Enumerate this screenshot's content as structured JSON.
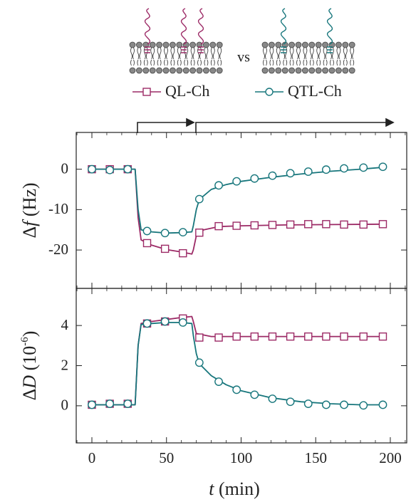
{
  "chart_data": [
    {
      "type": "line",
      "annotation": "vs",
      "xlim": [
        -10.5,
        211
      ],
      "xticks": [
        0,
        50,
        100,
        150,
        200
      ],
      "xticks_minor": [
        -10,
        10,
        20,
        30,
        40,
        60,
        70,
        80,
        90,
        110,
        120,
        130,
        140,
        160,
        170,
        180,
        190,
        210
      ],
      "xtick_labels": false,
      "ylim": [
        -29.5,
        9.1
      ],
      "yticks": [
        0,
        -10,
        -20
      ],
      "ylabel": [
        "Δ",
        "f",
        " (Hz)"
      ],
      "series": [
        {
          "name": "QL-Ch",
          "color": "#9c2a66",
          "marker": "square",
          "x": [
            0,
            29,
            31,
            33,
            40,
            50,
            60,
            67,
            68,
            70,
            75,
            85,
            100,
            130,
            160,
            196
          ],
          "values": [
            0,
            0,
            -12,
            -17.5,
            -18.8,
            -19.9,
            -20.5,
            -21,
            -20,
            -16.5,
            -15,
            -14.2,
            -14,
            -13.8,
            -13.7,
            -13.6
          ],
          "marker_x": [
            0,
            12,
            24,
            37,
            49,
            61,
            72,
            85,
            97,
            109,
            121,
            133,
            145,
            157,
            169,
            182,
            195
          ],
          "marker_values": [
            0,
            0,
            0,
            -18.3,
            -19.7,
            -20.8,
            -15.7,
            -14.1,
            -14,
            -13.9,
            -13.8,
            -13.7,
            -13.6,
            -13.6,
            -13.7,
            -13.7,
            -13.6
          ]
        },
        {
          "name": "QTL-Ch",
          "color": "#17767c",
          "marker": "circle",
          "x": [
            0,
            29,
            31,
            33,
            40,
            50,
            60,
            67,
            68,
            70,
            72,
            80,
            90,
            100,
            120,
            140,
            160,
            180,
            196
          ],
          "values": [
            0,
            0,
            -10,
            -15,
            -15.5,
            -15.8,
            -15.7,
            -15.5,
            -14,
            -10,
            -7.5,
            -5,
            -3.8,
            -3,
            -2,
            -1.2,
            -0.5,
            0,
            0.5
          ],
          "marker_x": [
            0,
            12,
            24,
            37,
            49,
            61,
            72,
            85,
            97,
            109,
            121,
            133,
            145,
            157,
            169,
            182,
            195
          ],
          "marker_values": [
            0,
            -0.2,
            0,
            -15.3,
            -15.8,
            -15.6,
            -7.4,
            -4,
            -3,
            -2.3,
            -1.6,
            -1,
            -0.6,
            -0.1,
            0.2,
            0.4,
            0.6
          ]
        }
      ]
    },
    {
      "type": "line",
      "xlim": [
        -10.5,
        211
      ],
      "xticks": [
        0,
        50,
        100,
        150,
        200
      ],
      "xticks_minor": [
        -10,
        10,
        20,
        30,
        40,
        60,
        70,
        80,
        90,
        110,
        120,
        130,
        140,
        160,
        170,
        180,
        190,
        210
      ],
      "xtick_labels": true,
      "xlabel": [
        "t",
        " (min)"
      ],
      "ylim": [
        -1.85,
        5.85
      ],
      "yticks": [
        0,
        2,
        4
      ],
      "ylabel": [
        "Δ",
        "D",
        " (10",
        "-6",
        ")"
      ],
      "series": [
        {
          "color": "#9c2a66",
          "marker": "square",
          "x": [
            0,
            29,
            31,
            33,
            40,
            50,
            60,
            67,
            68,
            70,
            80,
            100,
            196
          ],
          "values": [
            0.05,
            0.05,
            3,
            4.1,
            4.2,
            4.3,
            4.4,
            4.45,
            4.2,
            3.6,
            3.45,
            3.45,
            3.45
          ],
          "marker_x": [
            0,
            12,
            24,
            37,
            49,
            61,
            72,
            85,
            97,
            109,
            121,
            133,
            145,
            157,
            169,
            182,
            195
          ],
          "marker_values": [
            0.05,
            0.1,
            0.1,
            4.1,
            4.2,
            4.35,
            3.4,
            3.4,
            3.45,
            3.45,
            3.45,
            3.45,
            3.45,
            3.45,
            3.45,
            3.45,
            3.45
          ]
        },
        {
          "color": "#17767c",
          "marker": "circle",
          "x": [
            0,
            29,
            31,
            33,
            40,
            50,
            60,
            67,
            68,
            70,
            72,
            80,
            90,
            100,
            120,
            140,
            160,
            180,
            196
          ],
          "values": [
            0.05,
            0.05,
            3,
            4.05,
            4.1,
            4.15,
            4.15,
            4.1,
            3.5,
            2.6,
            2.1,
            1.5,
            1.05,
            0.75,
            0.4,
            0.2,
            0.1,
            0.05,
            0.05
          ],
          "marker_x": [
            0,
            12,
            24,
            37,
            49,
            61,
            72,
            85,
            97,
            109,
            121,
            133,
            145,
            157,
            169,
            182,
            195
          ],
          "marker_values": [
            0.05,
            0.1,
            0.1,
            4.1,
            4.2,
            4.15,
            2.15,
            1.2,
            0.8,
            0.55,
            0.35,
            0.2,
            0.1,
            0.05,
            0.05,
            0.02,
            0.05
          ]
        }
      ]
    }
  ]
}
